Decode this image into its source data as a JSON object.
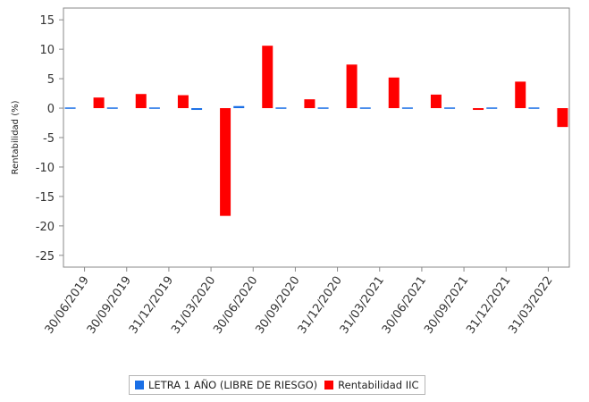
{
  "chart_data": {
    "type": "bar",
    "ylabel": "Rentabilidad (%)",
    "xlabel": "",
    "ylim": [
      -27,
      17
    ],
    "yticks": [
      15,
      10,
      5,
      0,
      -5,
      -10,
      -15,
      -20,
      -25
    ],
    "grid": false,
    "legend_position": "bottom",
    "categories": [
      "30/06/2019",
      "30/09/2019",
      "31/12/2019",
      "31/03/2020",
      "30/06/2020",
      "30/09/2020",
      "31/12/2020",
      "31/03/2021",
      "30/06/2021",
      "30/09/2021",
      "31/12/2021",
      "31/03/2022"
    ],
    "series": [
      {
        "name": "LETRA 1 AÑO (LIBRE DE RIESGO)",
        "color": "#1a6fe6",
        "values": [
          0.1,
          0.05,
          0.05,
          -0.3,
          0.35,
          0.05,
          0.2,
          -0.2,
          0.0,
          0.05,
          0.05,
          -0.2
        ]
      },
      {
        "name": "Rentabilidad IIC",
        "color": "#ff0000",
        "values": [
          1.8,
          2.4,
          2.2,
          -18.3,
          10.6,
          1.5,
          7.4,
          5.2,
          2.3,
          -0.3,
          4.5,
          -3.2
        ]
      }
    ]
  }
}
